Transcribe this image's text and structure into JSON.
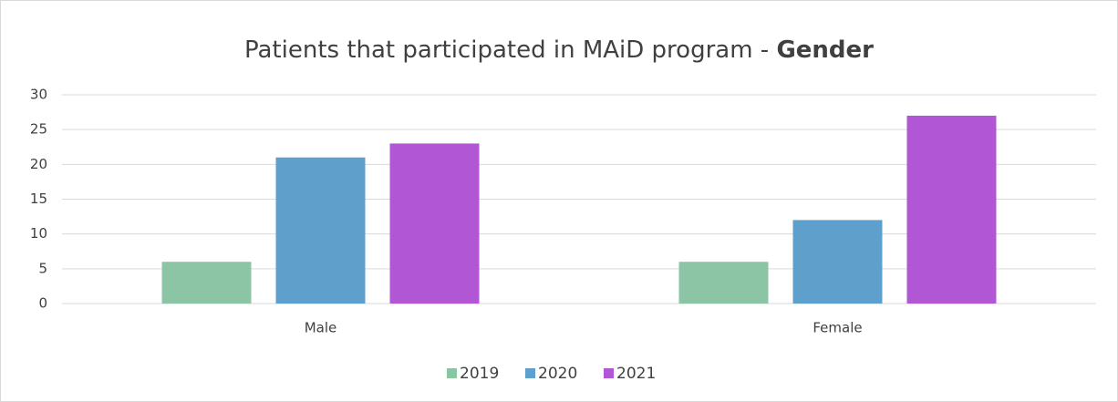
{
  "chart_data": {
    "type": "bar",
    "title": "Patients that participated in MAiD program - ",
    "title_emphasis": "Gender",
    "categories": [
      "Male",
      "Female"
    ],
    "series": [
      {
        "name": "2019",
        "color": "#8cc5a6",
        "values": [
          6,
          6
        ]
      },
      {
        "name": "2020",
        "color": "#5f9fcc",
        "values": [
          21,
          12
        ]
      },
      {
        "name": "2021",
        "color": "#b156d4",
        "values": [
          23,
          27
        ]
      }
    ],
    "ylim": [
      0,
      30
    ],
    "yticks": [
      0,
      5,
      10,
      15,
      20,
      25,
      30
    ],
    "grid": true,
    "legend": "bottom"
  }
}
